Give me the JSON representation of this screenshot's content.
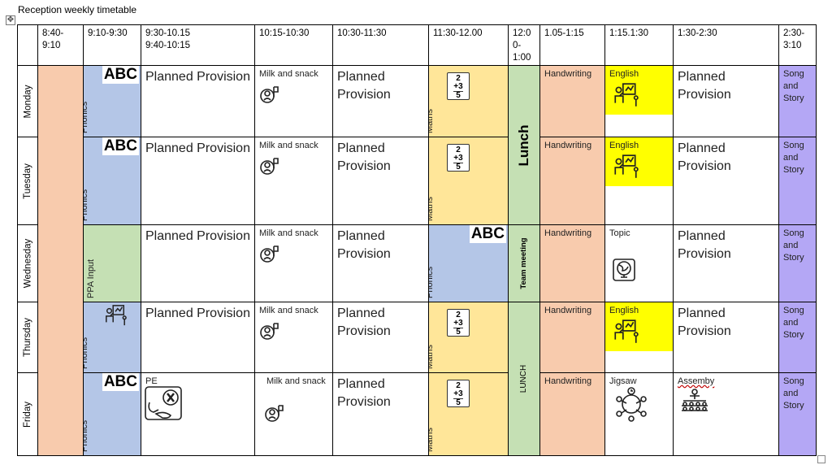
{
  "title": "Reception weekly timetable",
  "headers": [
    "8:40-\n9:10",
    "9:10-9:30",
    "9:30-10.15\n9:40-10:15",
    "10:15-10:30",
    "10:30-11:30",
    "11:30-12.00",
    "12:0\n0-\n1:00",
    "1.05-1:15",
    "1:15.1:30",
    "1:30-2:30",
    "2:30-\n3:10"
  ],
  "days": [
    "Monday",
    "Tuesday",
    "Wednesday",
    "Thursday",
    "Friday"
  ],
  "labels": {
    "phonics": "Phonics",
    "abc": "ABC",
    "planned": "Planned Provision",
    "milk": "Milk and snack",
    "maths": "Maths",
    "lunch": "Lunch",
    "lunch_caps": "LUNCH",
    "team": "Team meeting",
    "handwriting": "Handwriting",
    "english": "English",
    "topic": "Topic",
    "song": "Song and Story",
    "ppa": "PPA Input",
    "pe": "PE",
    "jigsaw": "Jigsaw",
    "assembly": "Assemby"
  },
  "colors": {
    "orange": "#f8cbad",
    "blue": "#b4c6e7",
    "green": "#c5e0b4",
    "yellow_light": "#ffe699",
    "yellow": "#ffff00",
    "purple": "#b4a7f5"
  }
}
